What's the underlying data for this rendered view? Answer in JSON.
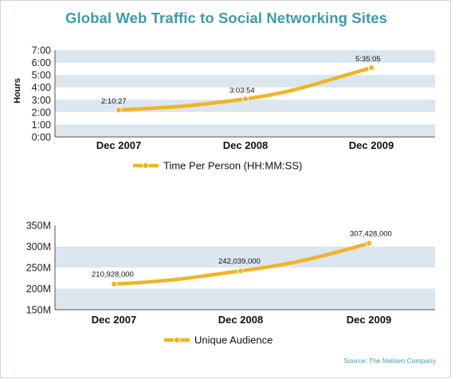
{
  "title": "Global Web Traffic to Social Networking Sites",
  "source": "Source: The Nielsen Company",
  "colors": {
    "line": "#f0b429",
    "band": "#dbe6ef",
    "title": "#3f9aad"
  },
  "chart_data": [
    {
      "type": "line",
      "categories": [
        "Dec 2007",
        "Dec 2008",
        "Dec 2009"
      ],
      "series": [
        {
          "name": "Time Per Person (HH:MM:SS)",
          "values": [
            2.174,
            3.065,
            5.585
          ]
        }
      ],
      "data_labels": [
        "2:10:27",
        "3:03:54",
        "5:35:05"
      ],
      "ylabel": "Hours",
      "ylim": [
        0,
        7
      ],
      "ytick_labels": [
        "0:00",
        "1:00",
        "2:00",
        "3:00",
        "4:00",
        "5:00",
        "6:00",
        "7:00"
      ],
      "grid": "alternating horizontal bands",
      "legend": "bottom-center"
    },
    {
      "type": "line",
      "categories": [
        "Dec 2007",
        "Dec 2008",
        "Dec 2009"
      ],
      "series": [
        {
          "name": "Unique Audience",
          "values": [
            210928000,
            242039000,
            307428000
          ]
        }
      ],
      "data_labels": [
        "210,928,000",
        "242,039,000",
        "307,428,000"
      ],
      "ylabel": "",
      "ylim": [
        150000000,
        350000000
      ],
      "ytick_labels": [
        "150M",
        "200M",
        "250M",
        "300M",
        "350M"
      ],
      "grid": "alternating horizontal bands",
      "legend": "bottom-center"
    }
  ]
}
